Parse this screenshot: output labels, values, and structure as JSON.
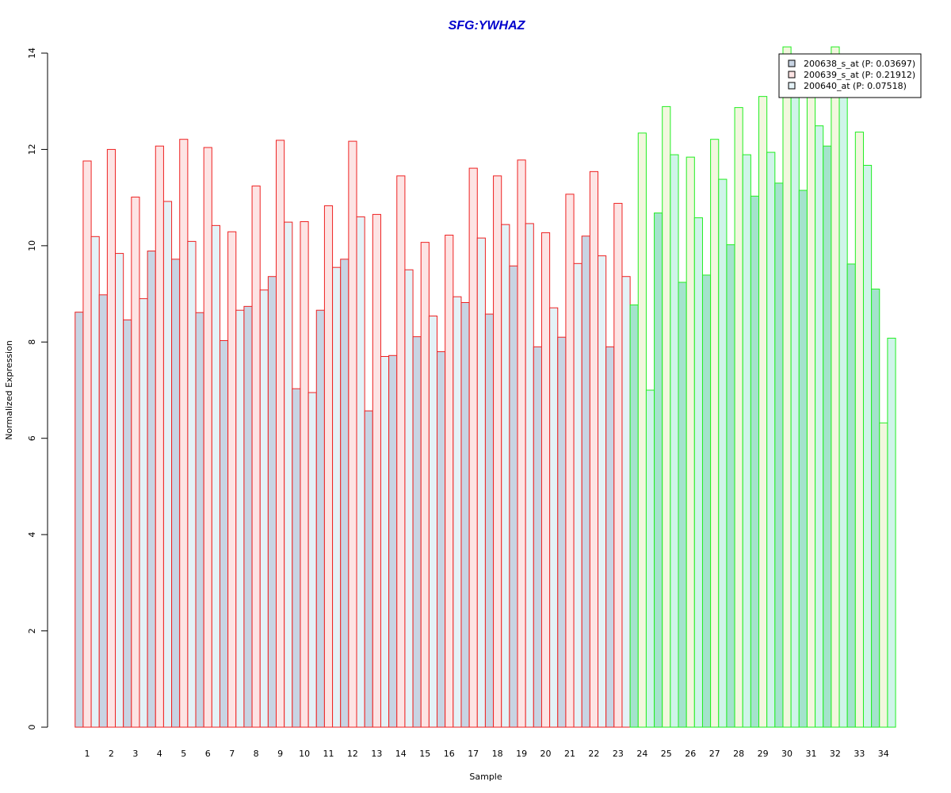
{
  "chart_data": {
    "type": "bar",
    "title": "SFG:YWHAZ",
    "xlabel": "Sample",
    "ylabel": "Normalized Expression",
    "ylim": [
      0,
      14
    ],
    "yticks": [
      "0",
      "2",
      "4",
      "6",
      "8",
      "10",
      "12",
      "14"
    ],
    "grid": false,
    "legend_position": "top-right",
    "categories": [
      "1",
      "2",
      "3",
      "4",
      "5",
      "6",
      "7",
      "8",
      "9",
      "10",
      "11",
      "12",
      "13",
      "14",
      "15",
      "16",
      "17",
      "18",
      "19",
      "20",
      "21",
      "22",
      "23",
      "24",
      "25",
      "26",
      "27",
      "28",
      "29",
      "30",
      "31",
      "32",
      "33",
      "34"
    ],
    "group_a_count": 23,
    "colors": {
      "title": "#0000cc",
      "group_a_border": "#ee2222",
      "group_b_border": "#22ee22",
      "probe1_fill_a": "#c8d4e3",
      "probe2_fill_a": "#fde4e4",
      "probe3_fill_a": "#e4f2f7",
      "probe1_fill_b": "#a4e3cc",
      "probe2_fill_b": "#f2f7de",
      "probe3_fill_b": "#cff4e9",
      "legend_fill_1": "#c8d4e3",
      "legend_fill_2": "#fde4e4",
      "legend_fill_3": "#e4f2f7"
    },
    "series": [
      {
        "name": "200638_s_at (P: 0.03697)",
        "values": [
          8.62,
          8.98,
          8.46,
          9.89,
          9.72,
          8.61,
          8.03,
          8.74,
          9.36,
          7.03,
          8.66,
          9.72,
          6.57,
          7.72,
          8.11,
          7.8,
          8.82,
          8.58,
          9.58,
          7.9,
          8.1,
          10.2,
          7.9,
          8.77,
          10.68,
          9.24,
          9.39,
          10.02,
          11.03,
          11.3,
          11.15,
          12.07,
          9.62,
          9.1
        ]
      },
      {
        "name": "200639_s_at (P: 0.21912)",
        "values": [
          11.76,
          12.0,
          11.01,
          12.07,
          12.21,
          12.04,
          10.29,
          11.24,
          12.19,
          10.5,
          10.83,
          12.17,
          10.65,
          11.45,
          10.07,
          10.22,
          11.61,
          11.45,
          11.78,
          10.27,
          11.07,
          11.54,
          10.88,
          12.34,
          12.89,
          11.84,
          12.21,
          12.87,
          13.1,
          14.13,
          13.2,
          14.13,
          12.36,
          6.32
        ]
      },
      {
        "name": "200640_at (P: 0.07518)",
        "values": [
          10.19,
          9.84,
          8.9,
          10.92,
          10.09,
          10.42,
          8.66,
          9.08,
          10.49,
          6.95,
          9.55,
          10.6,
          7.7,
          9.5,
          8.54,
          8.94,
          10.16,
          10.44,
          10.46,
          8.71,
          9.63,
          9.79,
          9.36,
          7.0,
          11.89,
          10.58,
          11.38,
          11.89,
          11.94,
          13.3,
          12.49,
          13.2,
          11.67,
          8.08
        ]
      }
    ]
  }
}
